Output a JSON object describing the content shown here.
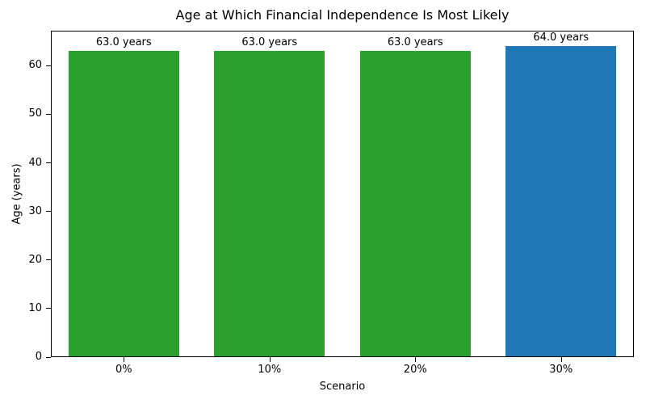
{
  "chart_data": {
    "type": "bar",
    "title": "Age at Which Financial Independence Is Most Likely",
    "xlabel": "Scenario",
    "ylabel": "Age (years)",
    "categories": [
      "0%",
      "10%",
      "20%",
      "30%"
    ],
    "values": [
      63.0,
      63.0,
      63.0,
      64.0
    ],
    "bar_labels": [
      "63.0 years",
      "63.0 years",
      "63.0 years",
      "64.0 years"
    ],
    "bar_colors": [
      "#2ca02c",
      "#2ca02c",
      "#2ca02c",
      "#1f77b4"
    ],
    "yticks": [
      0,
      10,
      20,
      30,
      40,
      50,
      60
    ],
    "ylim": [
      0,
      67.2
    ],
    "grid": false,
    "legend_position": "none",
    "background_color": "#ffffff",
    "spine_color": "#000000",
    "text_color": "#000000"
  }
}
